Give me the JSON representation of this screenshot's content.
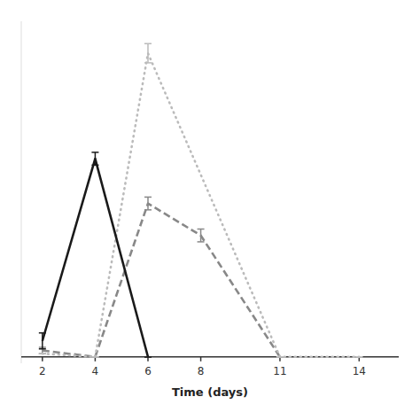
{
  "chart_data": {
    "type": "line",
    "xlabel": "Time (days)",
    "xlim": [
      1.2,
      15.5
    ],
    "xticks": [
      2,
      4,
      6,
      8,
      11,
      14
    ],
    "ylim": [
      -0.02,
      1.05
    ],
    "tick_labels": "x",
    "grid": false,
    "series": [
      {
        "color": "#1a1a1a",
        "line_style": "solid",
        "x": [
          2,
          4,
          6
        ],
        "values": [
          0.05,
          0.62,
          0.0
        ],
        "errors": [
          0.025,
          0.02,
          0.0
        ]
      },
      {
        "color": "#bbbbbb",
        "line_style": "dotted",
        "x": [
          2,
          4,
          6,
          11,
          14
        ],
        "values": [
          0.01,
          0.0,
          0.95,
          0.0,
          0.0
        ],
        "errors": [
          0.0,
          0.0,
          0.03,
          0.0,
          0.0
        ]
      },
      {
        "color": "#888888",
        "line_style": "dashed",
        "x": [
          2,
          4,
          6,
          8,
          11
        ],
        "values": [
          0.02,
          0.0,
          0.48,
          0.38,
          0.0
        ],
        "errors": [
          0.01,
          0.0,
          0.02,
          0.02,
          0.0
        ]
      }
    ]
  }
}
